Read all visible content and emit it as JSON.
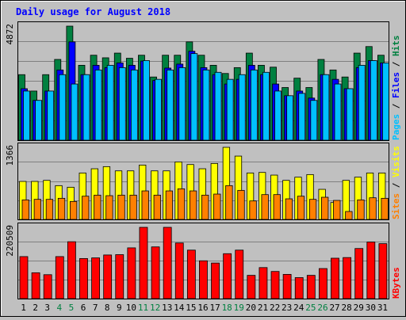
{
  "chart_data": {
    "type": "bar",
    "title": "Daily usage for August 2018",
    "categories": [
      "1",
      "2",
      "3",
      "4",
      "5",
      "6",
      "7",
      "8",
      "9",
      "10",
      "11",
      "12",
      "13",
      "14",
      "15",
      "16",
      "17",
      "18",
      "19",
      "20",
      "21",
      "22",
      "23",
      "24",
      "25",
      "26",
      "27",
      "28",
      "29",
      "30",
      "31"
    ],
    "weekend_categories": [
      "4",
      "5",
      "11",
      "12",
      "18",
      "19",
      "25",
      "26"
    ],
    "panels": [
      {
        "id": "hits",
        "max_label": "4872",
        "ymax": 4872,
        "series": [
          {
            "name": "Hits",
            "color": "#008040",
            "values": [
              2800,
              2100,
              2800,
              3450,
              4872,
              3200,
              3630,
              3520,
              3720,
              3500,
              3630,
              2700,
              3630,
              3630,
              4200,
              3630,
              3200,
              2850,
              3100,
              3720,
              3200,
              3120,
              2250,
              2650,
              2250,
              3450,
              3000,
              2700,
              3720,
              4000,
              3630
            ]
          },
          {
            "name": "Files",
            "color": "#0000ff",
            "values": [
              2200,
              1700,
              2100,
              3000,
              4200,
              2800,
              3200,
              3100,
              3300,
              3200,
              3380,
              2550,
              3080,
              3250,
              3800,
              3100,
              2800,
              2400,
              2600,
              3200,
              2800,
              2400,
              1900,
              2100,
              1800,
              2800,
              2600,
              2200,
              3100,
              3400,
              3300
            ]
          },
          {
            "name": "Pages",
            "color": "#00c0ff",
            "values": [
              2100,
              1700,
              2100,
              2800,
              2400,
              2800,
              3000,
              3200,
              3100,
              3000,
              3400,
              2600,
              3000,
              3100,
              3700,
              3000,
              2900,
              2600,
              2800,
              3000,
              2900,
              2100,
              1900,
              2000,
              1700,
              2800,
              2400,
              2200,
              3200,
              3400,
              3300
            ]
          }
        ]
      },
      {
        "id": "visits",
        "max_label": "1366",
        "ymax": 1366,
        "series": [
          {
            "name": "Visits",
            "color": "#ffff00",
            "values": [
              720,
              720,
              740,
              640,
              610,
              880,
              960,
              1000,
              920,
              920,
              1030,
              920,
              920,
              1090,
              1040,
              960,
              1060,
              1366,
              1200,
              880,
              890,
              840,
              740,
              800,
              850,
              570,
              320,
              740,
              800,
              880,
              880
            ]
          },
          {
            "name": "Sites",
            "color": "#ff8000",
            "values": [
              370,
              380,
              380,
              400,
              340,
              440,
              460,
              450,
              460,
              460,
              540,
              460,
              540,
              580,
              540,
              460,
              480,
              640,
              550,
              350,
              470,
              470,
              390,
              440,
              380,
              420,
              360,
              150,
              370,
              410,
              400
            ]
          }
        ]
      },
      {
        "id": "kbytes",
        "max_label": "220509",
        "ymax": 220509,
        "series": [
          {
            "name": "KBytes",
            "color": "#ff0000",
            "values": [
              130000,
              80000,
              74000,
              130000,
              176000,
              124000,
              126000,
              135000,
              136000,
              157000,
              220509,
              160000,
              220509,
              172000,
              150000,
              117000,
              110000,
              139000,
              150000,
              72000,
              96000,
              84000,
              75000,
              65000,
              72000,
              93000,
              125000,
              127000,
              155000,
              175000,
              170000
            ]
          }
        ]
      }
    ],
    "right_label_groups": [
      [
        {
          "text": "Pages",
          "color": "#00c0ff"
        },
        {
          "text": " / ",
          "color": "#000000"
        },
        {
          "text": "Files",
          "color": "#0000ff"
        },
        {
          "text": " / ",
          "color": "#000000"
        },
        {
          "text": "Hits",
          "color": "#008040"
        }
      ],
      [
        {
          "text": "Sites",
          "color": "#ff8000"
        },
        {
          "text": " / ",
          "color": "#000000"
        },
        {
          "text": "Visits",
          "color": "#ffff00"
        }
      ],
      [
        {
          "text": "KBytes",
          "color": "#ff0000"
        }
      ]
    ],
    "colors": {
      "background": "#c0c0c0",
      "plot_area": "#c0c0c0",
      "title": "#0000ff",
      "weekday_label": "#000000",
      "weekend_label": "#008040",
      "grid": "#808080"
    }
  }
}
